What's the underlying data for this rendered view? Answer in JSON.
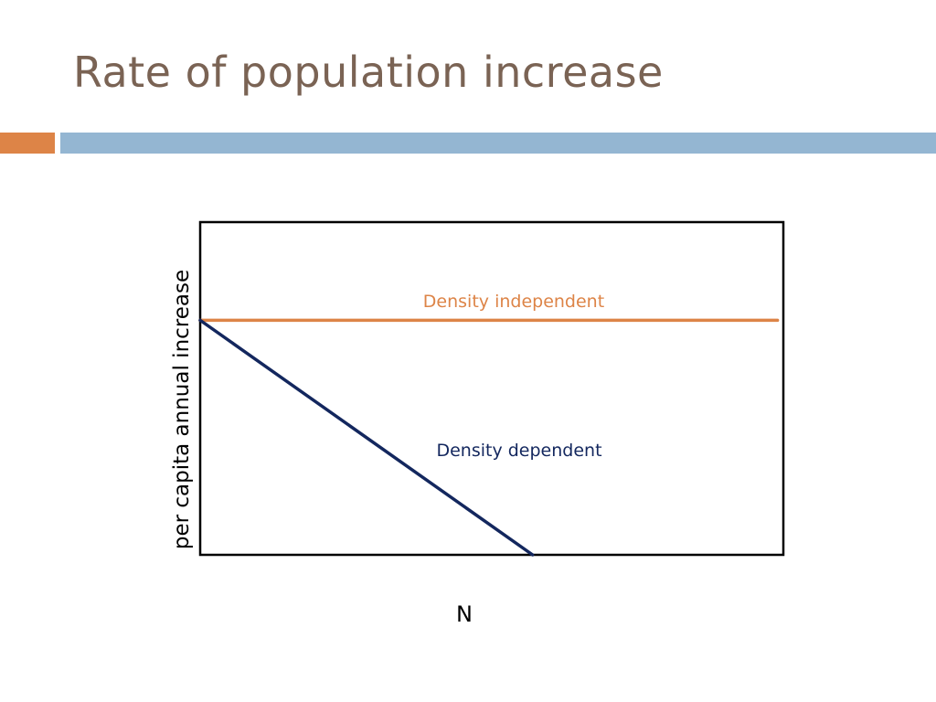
{
  "slide": {
    "title": "Rate of population increase"
  },
  "colors": {
    "title": "#7a6354",
    "accent_orange": "#dd8447",
    "accent_blue": "#94b6d2",
    "independent": "#dd8447",
    "dependent": "#13275e",
    "frame": "#000000"
  },
  "chart_data": {
    "type": "line",
    "title": "",
    "xlabel": "N",
    "ylabel": "per capita annual increase",
    "xlim": [
      0,
      100
    ],
    "ylim": [
      0,
      100
    ],
    "grid": false,
    "ticks": false,
    "series": [
      {
        "name": "Density independent",
        "color": "#dd8447",
        "points": [
          [
            0,
            70.5
          ],
          [
            99,
            70.5
          ]
        ]
      },
      {
        "name": "Density dependent",
        "color": "#13275e",
        "points": [
          [
            0,
            70.5
          ],
          [
            57,
            0
          ]
        ]
      }
    ]
  }
}
